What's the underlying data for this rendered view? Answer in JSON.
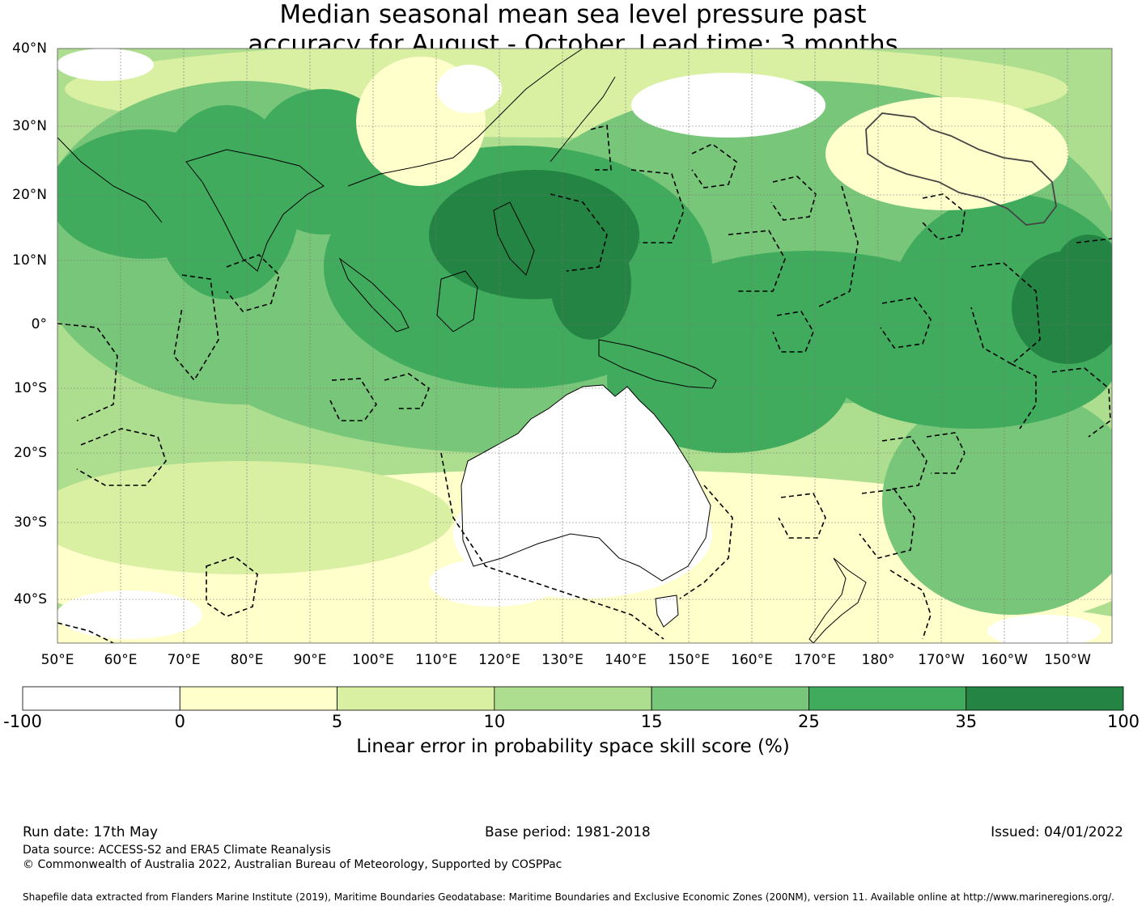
{
  "title": {
    "line1": "Median seasonal mean sea level pressure past",
    "line2": "accuracy for August - October. Lead time: 3 months"
  },
  "map": {
    "lat_labels": [
      "40°N",
      "30°N",
      "20°N",
      "10°N",
      "0°",
      "10°S",
      "20°S",
      "30°S",
      "40°S"
    ],
    "lon_labels": [
      "50°E",
      "60°E",
      "70°E",
      "80°E",
      "90°E",
      "100°E",
      "110°E",
      "120°E",
      "130°E",
      "140°E",
      "150°E",
      "160°E",
      "170°E",
      "180°",
      "170°W",
      "160°W",
      "150°W"
    ]
  },
  "colorbar": {
    "ticks": [
      "-100",
      "0",
      "5",
      "10",
      "15",
      "25",
      "35",
      "100"
    ],
    "colors": [
      "#ffffff",
      "#ffffcc",
      "#d9f0a3",
      "#addd8e",
      "#78c679",
      "#41ab5d",
      "#238443"
    ],
    "label": "Linear error in probability space skill score (%)"
  },
  "footer": {
    "run_date": "Run date: 17th May",
    "base_period": "Base period: 1981-2018",
    "issued": "Issued: 04/01/2022",
    "data_source": "Data source: ACCESS-S2 and ERA5 Climate Reanalysis",
    "copyright": "© Commonwealth of Australia 2022, Australian Bureau of Meteorology, Supported by COSPPac",
    "shapefile": "Shapefile data extracted from Flanders Marine Institute (2019), Maritime Boundaries Geodatabase: Maritime Boundaries and Exclusive Economic Zones (200NM), version 11. Available online at http://www.marineregions.org/."
  }
}
